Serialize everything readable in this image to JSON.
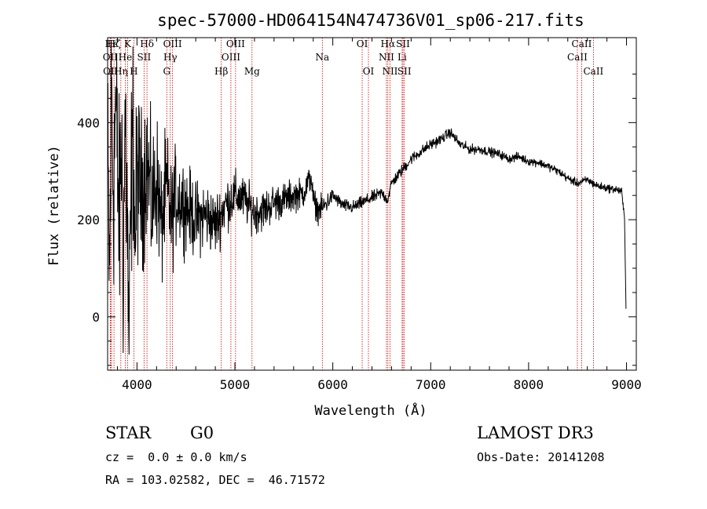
{
  "chart_data": {
    "type": "line",
    "title": "spec-57000-HD064154N474736V01_sp06-217.fits",
    "xlabel": "Wavelength (Å)",
    "ylabel": "Flux (relative)",
    "xlim": [
      3700,
      9100
    ],
    "ylim": [
      -110,
      575
    ],
    "x_ticks": [
      4000,
      5000,
      6000,
      7000,
      8000,
      9000
    ],
    "y_ticks": [
      0,
      200,
      400
    ],
    "grid": false,
    "legend": "none",
    "line_color": "#000000",
    "marker_color": "#cc0000",
    "spectrum_anchors": [
      [
        3700,
        330
      ],
      [
        3720,
        70
      ],
      [
        3740,
        480
      ],
      [
        3760,
        250
      ],
      [
        3780,
        440
      ],
      [
        3800,
        320
      ],
      [
        3820,
        180
      ],
      [
        3840,
        380
      ],
      [
        3860,
        120
      ],
      [
        3880,
        420
      ],
      [
        3900,
        200
      ],
      [
        3920,
        -80
      ],
      [
        3940,
        260
      ],
      [
        3960,
        380
      ],
      [
        3980,
        140
      ],
      [
        4000,
        300
      ],
      [
        4050,
        250
      ],
      [
        4100,
        330
      ],
      [
        4150,
        220
      ],
      [
        4200,
        290
      ],
      [
        4250,
        180
      ],
      [
        4300,
        270
      ],
      [
        4350,
        200
      ],
      [
        4400,
        250
      ],
      [
        4500,
        230
      ],
      [
        4600,
        200
      ],
      [
        4700,
        210
      ],
      [
        4800,
        190
      ],
      [
        4900,
        230
      ],
      [
        5000,
        250
      ],
      [
        5100,
        240
      ],
      [
        5200,
        215
      ],
      [
        5300,
        220
      ],
      [
        5400,
        235
      ],
      [
        5500,
        240
      ],
      [
        5600,
        250
      ],
      [
        5700,
        255
      ],
      [
        5780,
        290
      ],
      [
        5800,
        240
      ],
      [
        5850,
        220
      ],
      [
        5900,
        225
      ],
      [
        6000,
        250
      ],
      [
        6100,
        230
      ],
      [
        6200,
        225
      ],
      [
        6300,
        235
      ],
      [
        6400,
        245
      ],
      [
        6500,
        255
      ],
      [
        6560,
        240
      ],
      [
        6600,
        275
      ],
      [
        6700,
        300
      ],
      [
        6800,
        325
      ],
      [
        6900,
        340
      ],
      [
        7000,
        355
      ],
      [
        7100,
        365
      ],
      [
        7200,
        380
      ],
      [
        7300,
        355
      ],
      [
        7400,
        345
      ],
      [
        7500,
        345
      ],
      [
        7600,
        340
      ],
      [
        7700,
        335
      ],
      [
        7800,
        325
      ],
      [
        7900,
        330
      ],
      [
        8000,
        320
      ],
      [
        8100,
        318
      ],
      [
        8200,
        310
      ],
      [
        8300,
        300
      ],
      [
        8400,
        285
      ],
      [
        8500,
        275
      ],
      [
        8600,
        282
      ],
      [
        8700,
        270
      ],
      [
        8800,
        265
      ],
      [
        8900,
        262
      ],
      [
        8950,
        258
      ],
      [
        8980,
        200
      ],
      [
        8995,
        20
      ]
    ],
    "noise_profile": [
      [
        3700,
        160
      ],
      [
        3900,
        170
      ],
      [
        4000,
        130
      ],
      [
        4100,
        110
      ],
      [
        4300,
        85
      ],
      [
        4500,
        60
      ],
      [
        4800,
        45
      ],
      [
        5000,
        35
      ],
      [
        5500,
        25
      ],
      [
        5900,
        18
      ],
      [
        6000,
        10
      ],
      [
        6500,
        9
      ],
      [
        7000,
        8
      ],
      [
        8000,
        6
      ],
      [
        9000,
        6
      ]
    ],
    "lines": [
      {
        "label": "Hε",
        "x": 3740,
        "row": 1
      },
      {
        "label": "Hζ",
        "x": 3765,
        "row": 1
      },
      {
        "label": "K",
        "x": 3905,
        "row": 1
      },
      {
        "label": "Hδ",
        "x": 4102,
        "row": 1
      },
      {
        "label": "OIII",
        "x": 4363,
        "row": 1
      },
      {
        "label": "OIII",
        "x": 5007,
        "row": 1
      },
      {
        "label": "OI",
        "x": 6300,
        "row": 1
      },
      {
        "label": "Hα",
        "x": 6563,
        "row": 1
      },
      {
        "label": "SII",
        "x": 6717,
        "row": 1
      },
      {
        "label": "CaII",
        "x": 8542,
        "row": 1
      },
      {
        "label": "OII",
        "x": 3727,
        "row": 2
      },
      {
        "label": "He",
        "x": 3880,
        "row": 2
      },
      {
        "label": "SII",
        "x": 4072,
        "row": 2
      },
      {
        "label": "Hγ",
        "x": 4340,
        "row": 2
      },
      {
        "label": "OIII",
        "x": 4959,
        "row": 2
      },
      {
        "label": "Na",
        "x": 5893,
        "row": 2
      },
      {
        "label": "NII",
        "x": 6548,
        "row": 2
      },
      {
        "label": "Li",
        "x": 6708,
        "row": 2
      },
      {
        "label": "CaII",
        "x": 8498,
        "row": 2
      },
      {
        "label": "OII",
        "x": 3730,
        "row": 3
      },
      {
        "label": "Hη",
        "x": 3835,
        "row": 3
      },
      {
        "label": "H",
        "x": 3968,
        "row": 3
      },
      {
        "label": "G",
        "x": 4304,
        "row": 3
      },
      {
        "label": "Hβ",
        "x": 4861,
        "row": 3
      },
      {
        "label": "Mg",
        "x": 5175,
        "row": 3
      },
      {
        "label": "OI",
        "x": 6364,
        "row": 3
      },
      {
        "label": "NII",
        "x": 6584,
        "row": 3
      },
      {
        "label": "SII",
        "x": 6731,
        "row": 3
      },
      {
        "label": "CaII",
        "x": 8662,
        "row": 3
      }
    ]
  },
  "info": {
    "object": "STAR",
    "subclass": "G0",
    "survey": "LAMOST DR3",
    "redshift": "cz =  0.0 ± 0.0 km/s",
    "obs_date": "Obs-Date: 20141208",
    "coords": "RA = 103.02582, DEC =  46.71572"
  }
}
